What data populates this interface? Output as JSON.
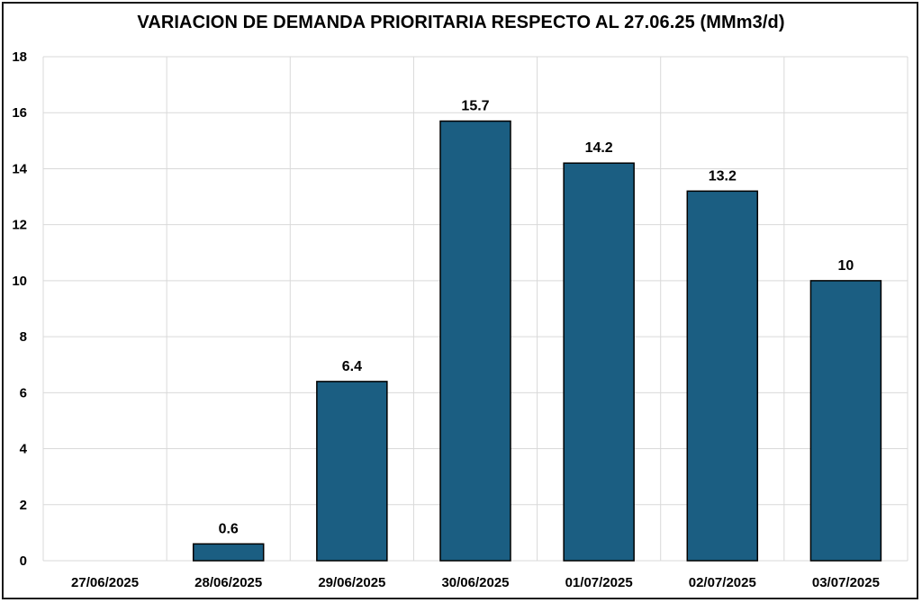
{
  "chart_data": {
    "type": "bar",
    "title": "VARIACION DE DEMANDA PRIORITARIA RESPECTO AL 27.06.25 (MMm3/d)",
    "xlabel": "",
    "ylabel": "",
    "categories": [
      "27/06/2025",
      "28/06/2025",
      "29/06/2025",
      "30/06/2025",
      "01/07/2025",
      "02/07/2025",
      "03/07/2025"
    ],
    "values": [
      0,
      0.6,
      6.4,
      15.7,
      14.2,
      13.2,
      10
    ],
    "data_labels": [
      "",
      "0.6",
      "6.4",
      "15.7",
      "14.2",
      "13.2",
      "10"
    ],
    "ylim": [
      0,
      18
    ],
    "yticks": [
      "0",
      "2",
      "4",
      "6",
      "8",
      "10",
      "12",
      "14",
      "16",
      "18"
    ],
    "grid": true,
    "legend": "none",
    "colors": {
      "bar": "#1b5e82",
      "bar_edge": "#000000",
      "grid": "#d9d9d9"
    }
  }
}
